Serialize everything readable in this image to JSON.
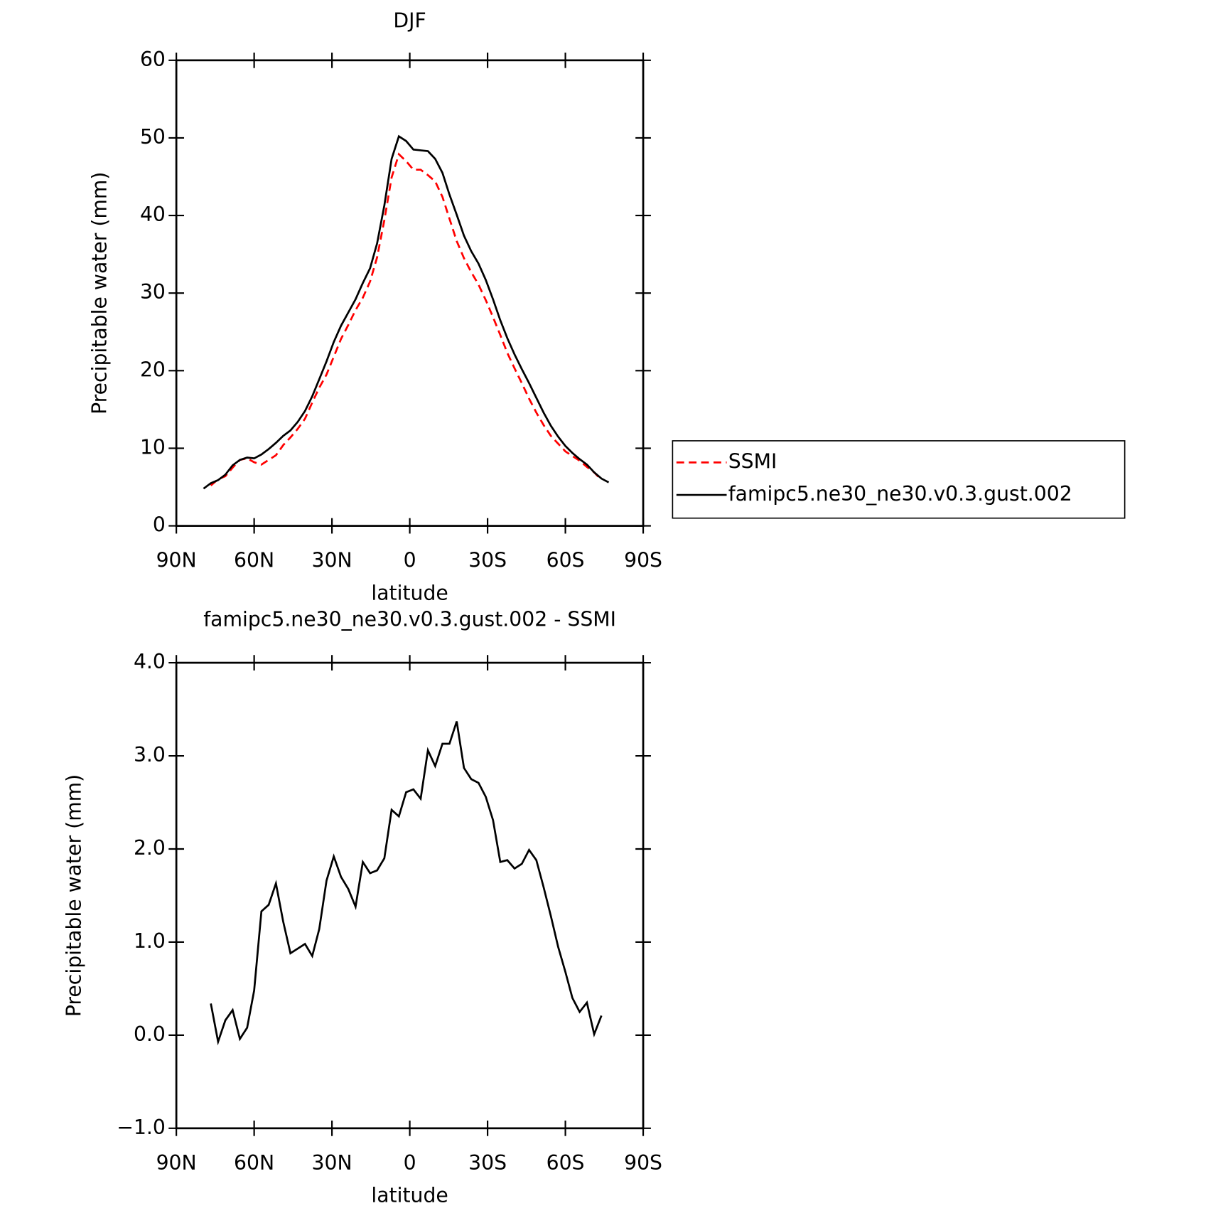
{
  "chart_data": [
    {
      "type": "line",
      "title": "DJF",
      "x_label": "latitude",
      "y_label": "Precipitable water (mm)",
      "x": [
        79.5,
        76.7,
        73.9,
        71.1,
        68.3,
        65.5,
        62.7,
        60.0,
        57.2,
        54.4,
        51.6,
        48.8,
        46.0,
        43.2,
        40.4,
        37.6,
        34.9,
        32.1,
        29.3,
        26.5,
        23.7,
        20.9,
        18.1,
        15.3,
        12.6,
        9.8,
        7.0,
        4.2,
        1.4,
        -1.4,
        -4.2,
        -7.0,
        -9.8,
        -12.6,
        -15.3,
        -18.1,
        -20.9,
        -23.7,
        -26.5,
        -29.3,
        -32.1,
        -34.9,
        -37.6,
        -40.4,
        -43.2,
        -46.0,
        -48.8,
        -51.6,
        -54.4,
        -57.2,
        -60.0,
        -62.7,
        -65.5,
        -68.3,
        -71.1,
        -73.9,
        -76.7
      ],
      "xlim": [
        90,
        -90
      ],
      "xticks": [
        {
          "value": 90,
          "label": "90N"
        },
        {
          "value": 60,
          "label": "60N"
        },
        {
          "value": 30,
          "label": "30N"
        },
        0,
        {
          "value": -30,
          "label": "30S"
        },
        {
          "value": -60,
          "label": "60S"
        },
        {
          "value": -90,
          "label": "90S"
        }
      ],
      "ylim": [
        0,
        60
      ],
      "yticks": [
        0,
        10,
        20,
        30,
        40,
        50,
        60
      ],
      "legend": "right",
      "series": [
        {
          "name": "SSMI",
          "color": "#ff0000",
          "line_style": "dashed",
          "values": [
            null,
            5.2,
            6.0,
            6.4,
            7.5,
            8.5,
            8.7,
            8.2,
            7.9,
            8.5,
            9.1,
            10.4,
            11.4,
            12.5,
            13.8,
            15.9,
            17.8,
            19.5,
            21.8,
            24.1,
            25.9,
            27.8,
            29.4,
            31.5,
            34.6,
            39.4,
            44.9,
            47.9,
            47.0,
            45.9,
            45.9,
            45.2,
            44.4,
            42.4,
            39.6,
            36.7,
            34.5,
            32.7,
            31.1,
            29.1,
            26.9,
            24.6,
            22.3,
            20.3,
            18.4,
            16.4,
            14.6,
            13.0,
            11.6,
            10.6,
            9.6,
            9.0,
            8.4,
            7.6,
            6.9,
            5.9,
            null
          ]
        },
        {
          "name": "famipc5.ne30_ne30.v0.3.gust.002",
          "color": "#000000",
          "line_style": "solid",
          "values": [
            4.8,
            5.5,
            5.9,
            6.6,
            7.8,
            8.5,
            8.8,
            8.7,
            9.2,
            9.9,
            10.7,
            11.6,
            12.3,
            13.4,
            14.8,
            16.7,
            18.9,
            21.2,
            23.7,
            25.8,
            27.5,
            29.2,
            31.3,
            33.2,
            36.4,
            41.3,
            47.3,
            50.2,
            49.6,
            48.5,
            48.4,
            48.3,
            47.3,
            45.5,
            42.7,
            40.1,
            37.4,
            35.4,
            33.8,
            31.7,
            29.2,
            26.5,
            24.2,
            22.1,
            20.2,
            18.4,
            16.5,
            14.6,
            12.9,
            11.5,
            10.3,
            9.4,
            8.6,
            7.9,
            6.9,
            6.1,
            5.6
          ]
        }
      ]
    },
    {
      "type": "line",
      "title": "famipc5.ne30_ne30.v0.3.gust.002 - SSMI",
      "x_label": "latitude",
      "y_label": "Precipitable water (mm)",
      "x": [
        76.7,
        73.9,
        71.1,
        68.3,
        65.5,
        62.7,
        60.0,
        57.2,
        54.4,
        51.6,
        48.8,
        46.0,
        43.2,
        40.4,
        37.6,
        34.9,
        32.1,
        29.3,
        26.5,
        23.7,
        20.9,
        18.1,
        15.3,
        12.6,
        9.8,
        7.0,
        4.2,
        1.4,
        -1.4,
        -4.2,
        -7.0,
        -9.8,
        -12.6,
        -15.3,
        -18.1,
        -20.9,
        -23.7,
        -26.5,
        -29.3,
        -32.1,
        -34.9,
        -37.6,
        -40.4,
        -43.2,
        -46.0,
        -48.8,
        -51.6,
        -54.4,
        -57.2,
        -60.0,
        -62.7,
        -65.5,
        -68.3,
        -71.1,
        -73.9
      ],
      "xlim": [
        90,
        -90
      ],
      "xticks": [
        {
          "value": 90,
          "label": "90N"
        },
        {
          "value": 60,
          "label": "60N"
        },
        {
          "value": 30,
          "label": "30N"
        },
        0,
        {
          "value": -30,
          "label": "30S"
        },
        {
          "value": -60,
          "label": "60S"
        },
        {
          "value": -90,
          "label": "90S"
        }
      ],
      "ylim": [
        -1,
        4
      ],
      "yticks": [
        {
          "value": -1,
          "label": "−1.0"
        },
        {
          "value": 0,
          "label": "0.0"
        },
        {
          "value": 1,
          "label": "1.0"
        },
        {
          "value": 2,
          "label": "2.0"
        },
        {
          "value": 3,
          "label": "3.0"
        },
        {
          "value": 4,
          "label": "4.0"
        }
      ],
      "series": [
        {
          "color": "#000000",
          "line_style": "solid",
          "values": [
            0.34,
            -0.07,
            0.16,
            0.27,
            -0.04,
            0.08,
            0.48,
            1.33,
            1.4,
            1.63,
            1.22,
            0.88,
            0.93,
            0.98,
            0.85,
            1.14,
            1.66,
            1.92,
            1.7,
            1.57,
            1.38,
            1.86,
            1.74,
            1.77,
            1.9,
            2.42,
            2.35,
            2.61,
            2.64,
            2.54,
            3.06,
            2.89,
            3.13,
            3.13,
            3.37,
            2.87,
            2.75,
            2.71,
            2.56,
            2.31,
            1.86,
            1.88,
            1.79,
            1.84,
            1.99,
            1.88,
            1.59,
            1.28,
            0.95,
            0.68,
            0.4,
            0.25,
            0.35,
            0.01,
            0.21
          ]
        }
      ]
    }
  ]
}
